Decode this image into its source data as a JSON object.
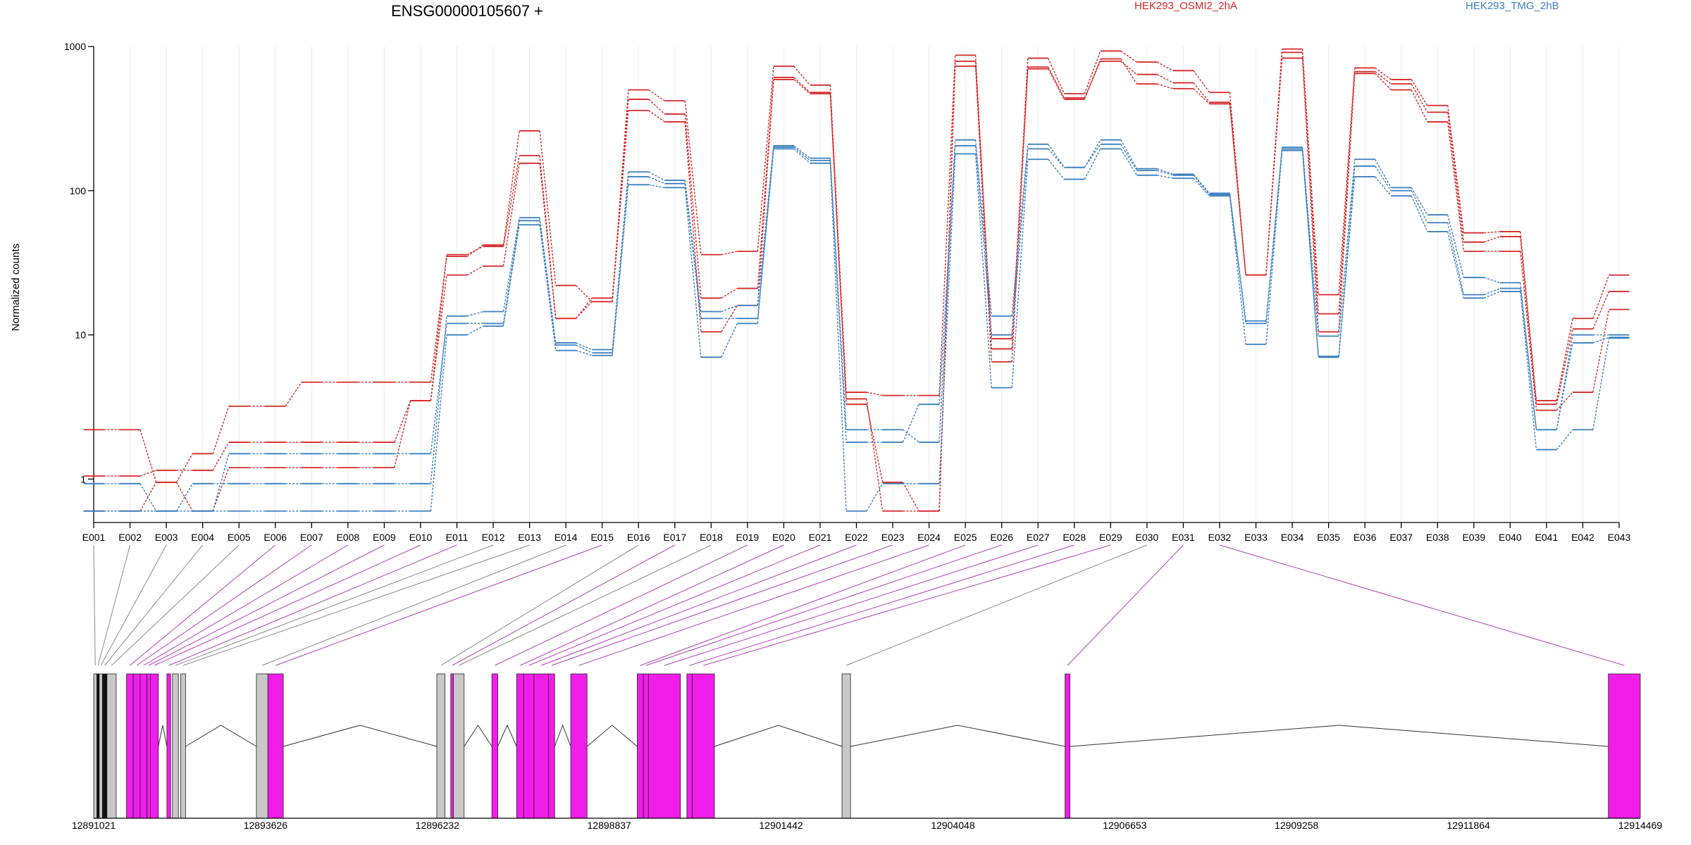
{
  "chart_data": {
    "type": "line",
    "title": "ENSG00000105607 +",
    "ylabel": "Normalized counts",
    "xlabel": "",
    "y_scale": "log",
    "ylim": [
      0.5,
      1000
    ],
    "y_ticks": [
      1,
      10,
      100,
      1000
    ],
    "y_tick_labels": [
      "1",
      "10",
      "100",
      "1000"
    ],
    "grid": true,
    "legend_placement": "top",
    "categories": [
      "E001",
      "E002",
      "E003",
      "E004",
      "E005",
      "E006",
      "E007",
      "E008",
      "E009",
      "E010",
      "E011",
      "E012",
      "E013",
      "E014",
      "E015",
      "E016",
      "E017",
      "E018",
      "E019",
      "E020",
      "E021",
      "E022",
      "E023",
      "E024",
      "E025",
      "E026",
      "E027",
      "E028",
      "E029",
      "E030",
      "E031",
      "E032",
      "E033",
      "E034",
      "E035",
      "E036",
      "E037",
      "E038",
      "E039",
      "E040",
      "E041",
      "E042",
      "E043"
    ],
    "conditions": [
      {
        "name": "HEK293_OSMI2_2hA",
        "color": "#d62728"
      },
      {
        "name": "HEK293_TMG_2hB",
        "color": "#3a7fbf"
      }
    ],
    "series": [
      {
        "condition": "HEK293_OSMI2_2hA",
        "values": [
          2.2,
          2.2,
          0.95,
          1.5,
          3.2,
          3.2,
          4.7,
          4.7,
          4.7,
          4.7,
          35,
          42,
          260,
          22,
          17,
          500,
          420,
          36,
          38,
          730,
          540,
          4.0,
          3.8,
          3.8,
          870,
          8,
          830,
          470,
          930,
          780,
          680,
          480,
          26,
          960,
          19,
          710,
          590,
          390,
          51,
          52,
          3.5,
          13,
          26
        ]
      },
      {
        "condition": "HEK293_OSMI2_2hA",
        "values": [
          1.05,
          1.05,
          1.15,
          1.15,
          1.8,
          1.8,
          1.8,
          1.8,
          1.8,
          3.5,
          36,
          41,
          175,
          13,
          18,
          430,
          340,
          18,
          21,
          610,
          480,
          3.6,
          0.6,
          0.6,
          790,
          9.4,
          720,
          440,
          790,
          640,
          560,
          410,
          26,
          910,
          14,
          670,
          550,
          350,
          44,
          48,
          3.3,
          11,
          20
        ]
      },
      {
        "condition": "HEK293_OSMI2_2hA",
        "values": [
          0.6,
          0.6,
          0.95,
          0.6,
          1.2,
          1.2,
          1.2,
          1.2,
          1.2,
          3.5,
          26,
          30,
          155,
          13,
          17,
          360,
          300,
          10.5,
          16,
          590,
          470,
          3.3,
          0.95,
          0.6,
          730,
          6.5,
          700,
          430,
          820,
          550,
          510,
          400,
          26,
          830,
          10.5,
          650,
          500,
          300,
          38,
          38,
          3.0,
          4.0,
          15
        ]
      },
      {
        "condition": "HEK293_TMG_2hB",
        "values": [
          0.93,
          0.93,
          0.6,
          0.93,
          0.93,
          0.93,
          0.93,
          0.93,
          0.93,
          0.93,
          13.5,
          14.5,
          65,
          8.8,
          7.9,
          135,
          118,
          14.5,
          16,
          205,
          168,
          2.2,
          2.2,
          1.8,
          225,
          13.5,
          210,
          145,
          225,
          142,
          130,
          96,
          12.5,
          200,
          9.8,
          165,
          105,
          68,
          25,
          23,
          2.2,
          10,
          10
        ]
      },
      {
        "condition": "HEK293_TMG_2hB",
        "values": [
          0.6,
          0.6,
          0.6,
          0.6,
          1.5,
          1.5,
          1.5,
          1.5,
          1.5,
          1.5,
          12,
          12,
          62,
          8.5,
          7.5,
          125,
          112,
          13,
          13,
          200,
          162,
          1.8,
          1.8,
          3.3,
          205,
          10,
          195,
          145,
          210,
          138,
          128,
          94,
          12,
          195,
          7.1,
          148,
          100,
          60,
          19,
          21,
          2.2,
          8.8,
          9.6
        ]
      },
      {
        "condition": "HEK293_TMG_2hB",
        "values": [
          0.6,
          0.6,
          0.6,
          0.6,
          0.6,
          0.6,
          0.6,
          0.6,
          0.6,
          0.6,
          10,
          11.5,
          58,
          7.8,
          7.2,
          110,
          105,
          7,
          12,
          195,
          155,
          0.6,
          0.93,
          0.93,
          180,
          4.3,
          165,
          120,
          195,
          128,
          122,
          92,
          8.6,
          190,
          7,
          125,
          92,
          52,
          18,
          20,
          1.6,
          2.2,
          9.5
        ]
      }
    ],
    "gene_model": {
      "genomic_ticks": [
        "12891021",
        "12893626",
        "12896232",
        "12898837",
        "12901442",
        "12904048",
        "12906653",
        "12909258",
        "12911864",
        "12914469"
      ],
      "features": [
        {
          "start": 12891021,
          "end": 12891068,
          "type": "gray"
        },
        {
          "start": 12891068,
          "end": 12891105,
          "type": "black"
        },
        {
          "start": 12891105,
          "end": 12891153,
          "type": "gray"
        },
        {
          "start": 12891153,
          "end": 12891222,
          "type": "black"
        },
        {
          "start": 12891222,
          "end": 12891362,
          "type": "gray"
        },
        {
          "start": 12891519,
          "end": 12891620,
          "type": "magenta"
        },
        {
          "start": 12891620,
          "end": 12891725,
          "type": "magenta"
        },
        {
          "start": 12891725,
          "end": 12891827,
          "type": "magenta"
        },
        {
          "start": 12891827,
          "end": 12891880,
          "type": "magenta"
        },
        {
          "start": 12891880,
          "end": 12892001,
          "type": "magenta"
        },
        {
          "start": 12892131,
          "end": 12892187,
          "type": "magenta"
        },
        {
          "start": 12892215,
          "end": 12892305,
          "type": "gray"
        },
        {
          "start": 12892340,
          "end": 12892413,
          "type": "gray"
        },
        {
          "start": 12893488,
          "end": 12893662,
          "type": "gray"
        },
        {
          "start": 12893662,
          "end": 12893895,
          "type": "magenta"
        },
        {
          "start": 12896223,
          "end": 12896347,
          "type": "gray"
        },
        {
          "start": 12896435,
          "end": 12896474,
          "type": "magenta"
        },
        {
          "start": 12896474,
          "end": 12896637,
          "type": "gray"
        },
        {
          "start": 12897058,
          "end": 12897147,
          "type": "magenta"
        },
        {
          "start": 12897433,
          "end": 12897540,
          "type": "magenta"
        },
        {
          "start": 12897540,
          "end": 12897696,
          "type": "magenta"
        },
        {
          "start": 12897696,
          "end": 12897916,
          "type": "magenta"
        },
        {
          "start": 12897916,
          "end": 12898010,
          "type": "magenta"
        },
        {
          "start": 12898253,
          "end": 12898501,
          "type": "magenta"
        },
        {
          "start": 12899262,
          "end": 12899356,
          "type": "magenta"
        },
        {
          "start": 12899356,
          "end": 12899432,
          "type": "magenta"
        },
        {
          "start": 12899432,
          "end": 12899916,
          "type": "magenta"
        },
        {
          "start": 12900015,
          "end": 12900097,
          "type": "magenta"
        },
        {
          "start": 12900097,
          "end": 12900432,
          "type": "magenta"
        },
        {
          "start": 12902366,
          "end": 12902495,
          "type": "gray"
        },
        {
          "start": 12905748,
          "end": 12905822,
          "type": "magenta"
        },
        {
          "start": 12913985,
          "end": 12914469,
          "type": "magenta"
        }
      ],
      "introns": [
        {
          "from": 12892001,
          "to": 12892131,
          "peak": 12892066
        },
        {
          "from": 12892413,
          "to": 12893488,
          "peak": 12892950
        },
        {
          "from": 12893895,
          "to": 12896223,
          "peak": 12895060
        },
        {
          "from": 12896637,
          "to": 12897058,
          "peak": 12896848
        },
        {
          "from": 12897147,
          "to": 12897433,
          "peak": 12897290
        },
        {
          "from": 12898010,
          "to": 12898253,
          "peak": 12898132
        },
        {
          "from": 12898501,
          "to": 12899262,
          "peak": 12898880
        },
        {
          "from": 12900432,
          "to": 12902366,
          "peak": 12901400
        },
        {
          "from": 12902495,
          "to": 12905748,
          "peak": 12904120
        },
        {
          "from": 12905822,
          "to": 12913985,
          "peak": 12909900
        }
      ]
    }
  }
}
